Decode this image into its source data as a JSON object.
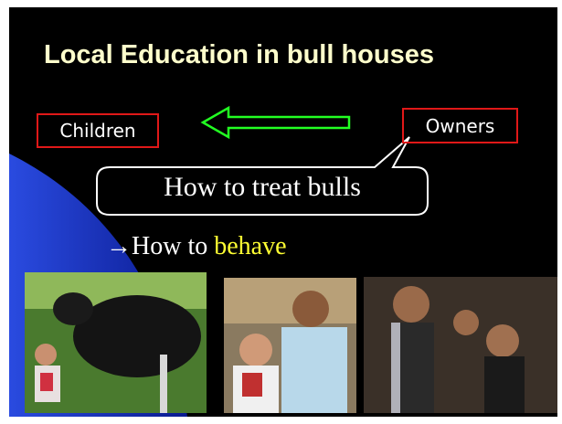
{
  "title": "Local Education in bull houses",
  "left_label": "Children",
  "right_label": "Owners",
  "bubble": "How to treat bulls",
  "lesson": [
    "→How to",
    "behave"
  ]
}
